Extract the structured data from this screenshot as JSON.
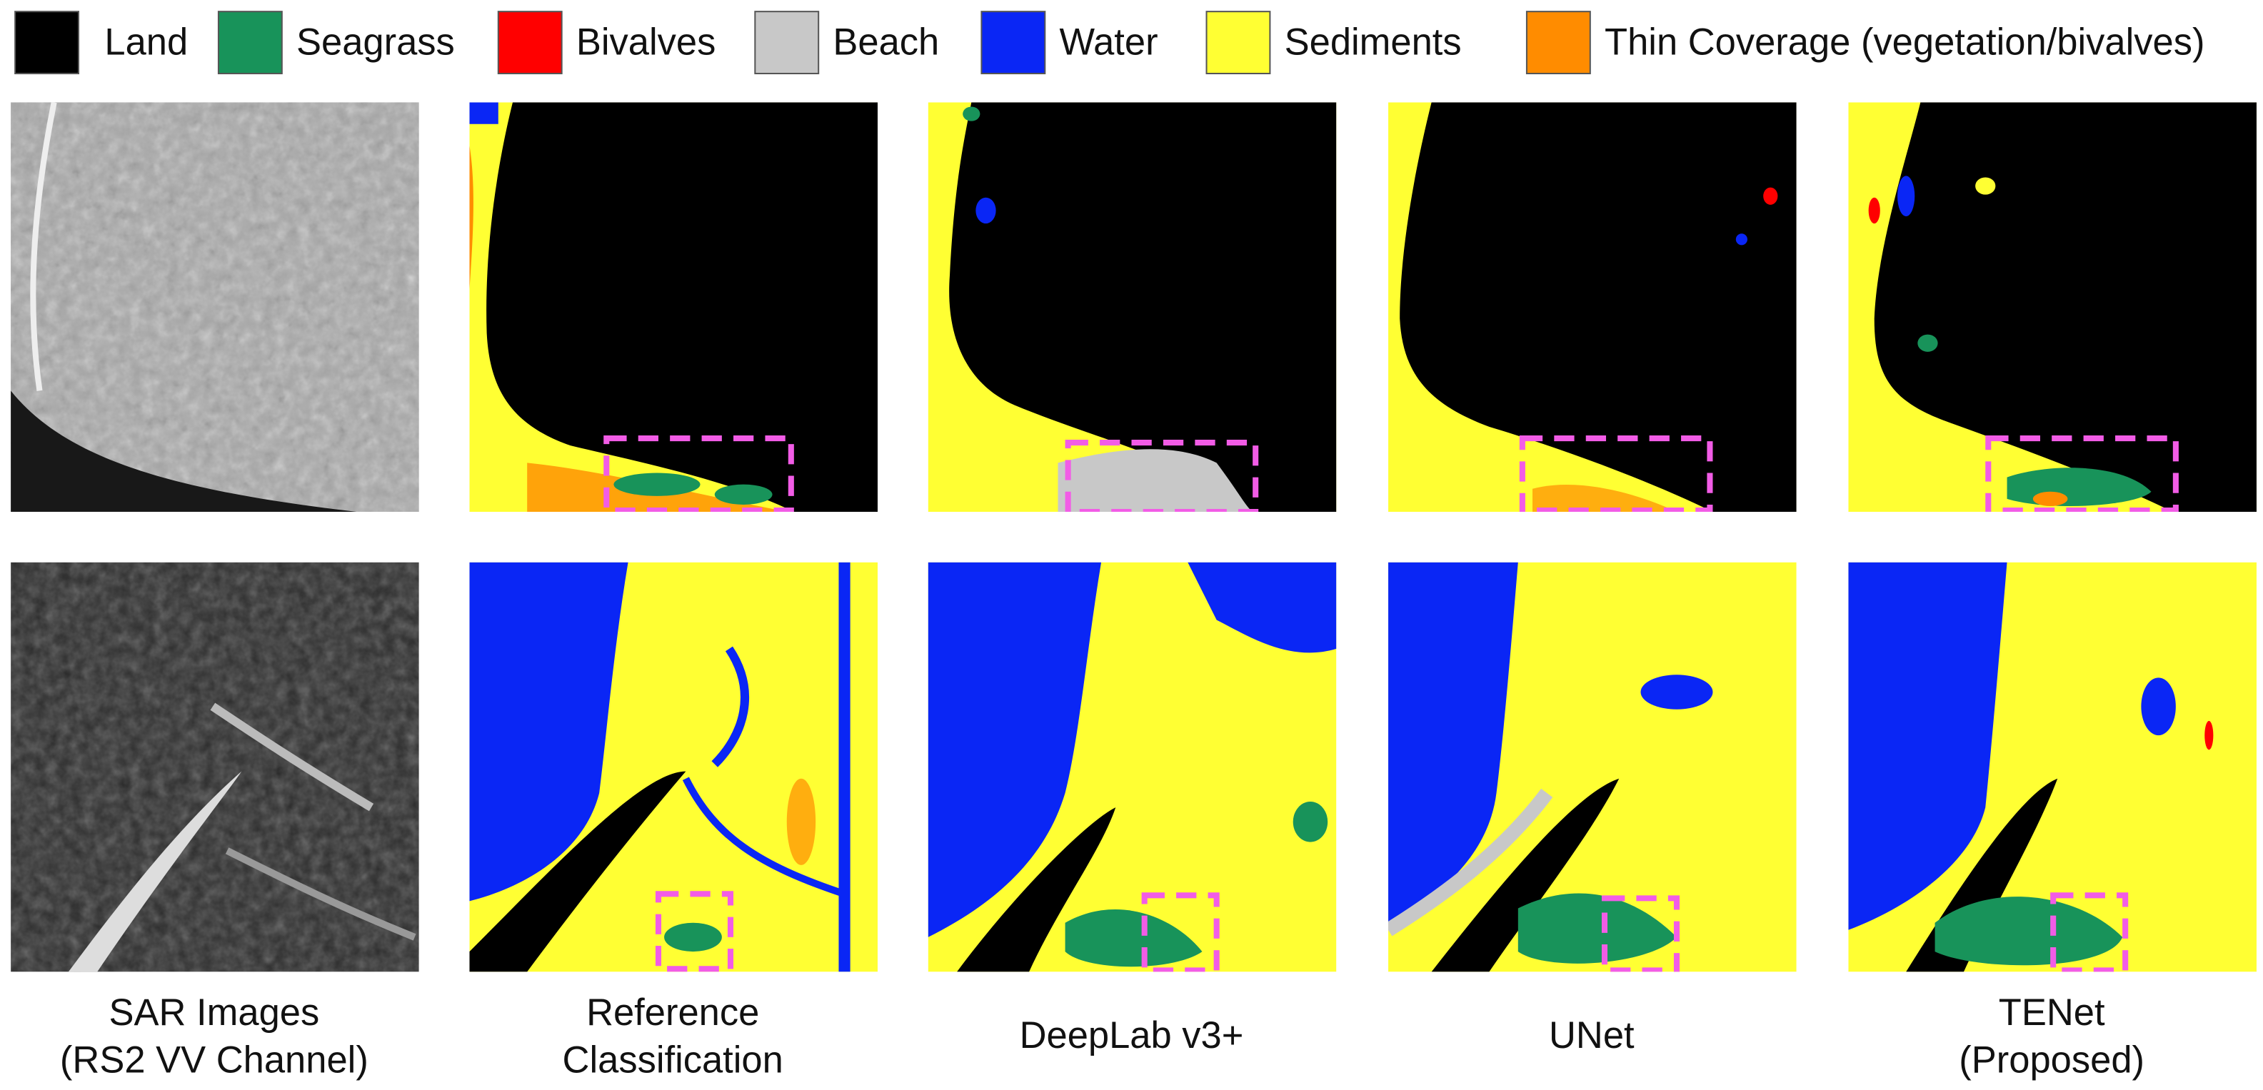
{
  "legend": [
    {
      "label": "Land",
      "color": "#000000"
    },
    {
      "label": "Seagrass",
      "color": "#18935a"
    },
    {
      "label": "Bivalves",
      "color": "#ff0000"
    },
    {
      "label": "Beach",
      "color": "#c8c8c8"
    },
    {
      "label": "Water",
      "color": "#0a26f5"
    },
    {
      "label": "Sediments",
      "color": "#ffff33"
    },
    {
      "label": "Thin Coverage (vegetation/bivalves)",
      "color": "#ff8c00"
    }
  ],
  "columns": [
    {
      "lines": [
        "SAR Images",
        "(RS2 VV Channel)"
      ]
    },
    {
      "lines": [
        "Reference",
        "Classification"
      ]
    },
    {
      "lines": [
        "DeepLab v3+"
      ]
    },
    {
      "lines": [
        "UNet"
      ]
    },
    {
      "lines": [
        "TENet",
        "(Proposed)"
      ]
    }
  ]
}
